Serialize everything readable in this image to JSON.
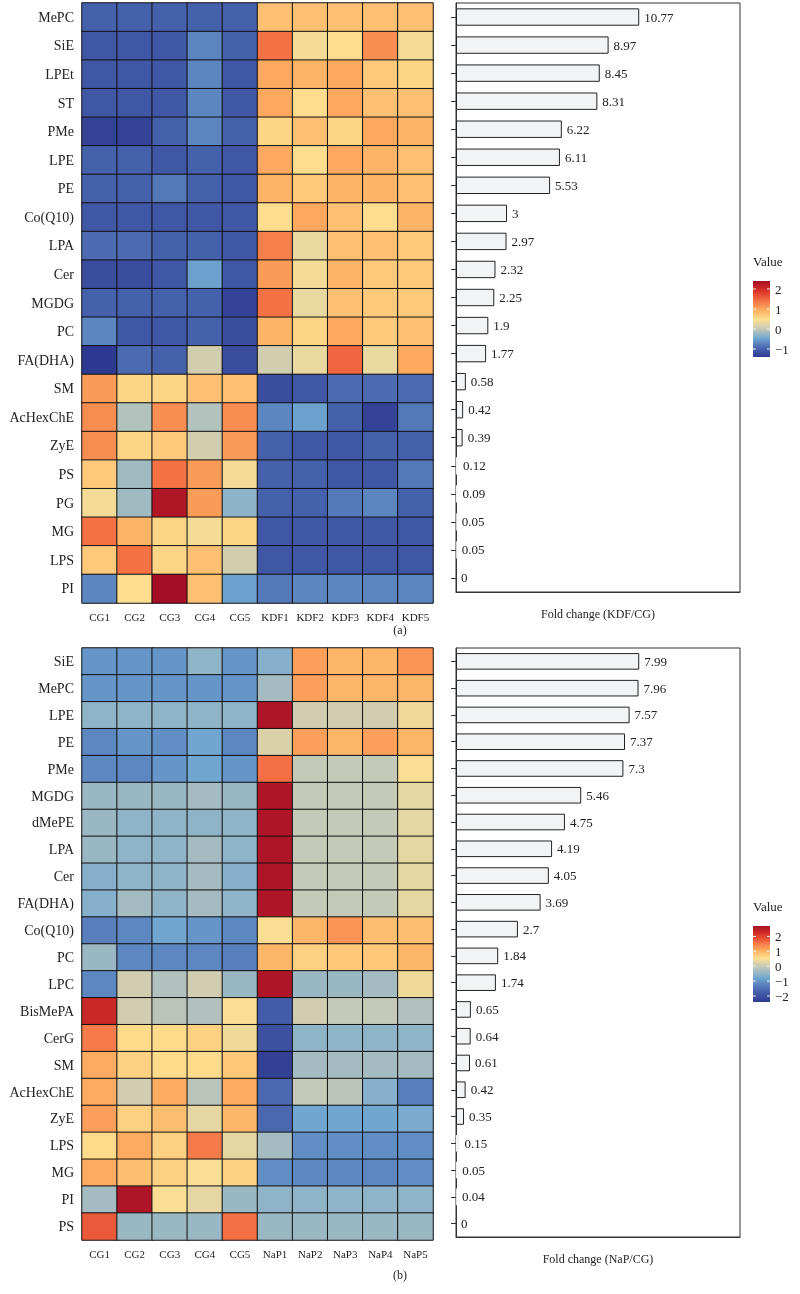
{
  "chart_data": [
    {
      "type": "heatmap",
      "categories": [
        "CG1",
        "CG2",
        "CG3",
        "CG4",
        "CG5",
        "KDF1",
        "KDF2",
        "KDF3",
        "KDF4",
        "KDF5"
      ],
      "y_categories": [
        "MePC",
        "SiE",
        "LPEt",
        "ST",
        "PMe",
        "LPE",
        "PE",
        "Co(Q10)",
        "LPA",
        "Cer",
        "MGDG",
        "PC",
        "FA(DHA)",
        "SM",
        "AcHexChE",
        "ZyE",
        "PS",
        "PG",
        "MG",
        "LPS",
        "PI"
      ],
      "cells": [
        [
          -1,
          -1,
          -1,
          -1,
          -1,
          0.8,
          0.8,
          0.8,
          0.8,
          0.8
        ],
        [
          -1.1,
          -1.1,
          -1.1,
          -0.7,
          -1,
          1.4,
          0.4,
          0.5,
          1.2,
          0.4
        ],
        [
          -1.1,
          -1.1,
          -1.1,
          -0.7,
          -1.1,
          1,
          0.9,
          1,
          0.7,
          0.6
        ],
        [
          -1.1,
          -1.1,
          -1.1,
          -0.7,
          -1.1,
          1,
          0.5,
          1,
          0.8,
          0.8
        ],
        [
          -1.3,
          -1.3,
          -1,
          -0.7,
          -1,
          0.6,
          0.8,
          0.6,
          1,
          0.9
        ],
        [
          -1,
          -1,
          -1.1,
          -1,
          -1.1,
          1,
          0.5,
          1,
          0.9,
          0.8
        ],
        [
          -1,
          -1,
          -0.8,
          -1,
          -1.1,
          0.9,
          0.7,
          0.9,
          0.9,
          0.8
        ],
        [
          -1.1,
          -1.1,
          -1.1,
          -1.1,
          -1.1,
          0.5,
          1,
          0.8,
          0.5,
          0.9
        ],
        [
          -0.9,
          -0.9,
          -1,
          -1,
          -1.1,
          1.3,
          0.3,
          0.8,
          0.8,
          0.7
        ],
        [
          -1.2,
          -1.2,
          -1.1,
          -0.5,
          -1.1,
          1.1,
          0.4,
          0.9,
          0.7,
          0.7
        ],
        [
          -1,
          -1,
          -1,
          -1,
          -1.3,
          1.4,
          0.3,
          0.8,
          0.7,
          0.7
        ],
        [
          -0.7,
          -1.1,
          -1.1,
          -1,
          -1.2,
          0.9,
          0.6,
          1,
          0.7,
          0.8
        ],
        [
          -1.4,
          -0.9,
          -1,
          0.1,
          -1.2,
          0.1,
          0.3,
          1.5,
          0.3,
          1
        ],
        [
          1.1,
          0.6,
          0.6,
          0.8,
          0.8,
          -1.2,
          -1.1,
          -0.9,
          -0.9,
          -0.9
        ],
        [
          1.2,
          -0.1,
          1.2,
          -0.1,
          1.2,
          -0.7,
          -0.5,
          -1,
          -1.3,
          -0.8
        ],
        [
          1.2,
          0.6,
          0.7,
          0.1,
          1.1,
          -1,
          -1.1,
          -1.1,
          -1,
          -1
        ],
        [
          0.7,
          -0.2,
          1.4,
          1.1,
          0.4,
          -1,
          -1,
          -1.1,
          -1.1,
          -0.8
        ],
        [
          0.4,
          -0.2,
          2.3,
          1.1,
          -0.3,
          -1,
          -1,
          -0.8,
          -0.7,
          -1
        ],
        [
          1.4,
          0.9,
          0.6,
          0.4,
          0.6,
          -1.1,
          -1.1,
          -1.1,
          -1.1,
          -1.1
        ],
        [
          0.7,
          1.4,
          0.6,
          0.8,
          0.1,
          -1.1,
          -1.1,
          -1.1,
          -1.1,
          -1.1
        ],
        [
          -0.7,
          0.5,
          2.4,
          0.8,
          -0.5,
          -0.8,
          -0.7,
          -0.7,
          -0.7,
          -0.7
        ]
      ],
      "clabel": "Value",
      "clim": [
        -1.4,
        2.4
      ],
      "cticks": [
        -1,
        0,
        1,
        2
      ],
      "annotations": [
        "(a)"
      ]
    },
    {
      "type": "bar",
      "orientation": "horizontal",
      "categories": [
        null,
        null,
        null,
        null,
        null,
        null,
        null,
        null,
        null,
        null,
        null,
        null,
        null,
        null,
        null,
        null,
        null,
        null,
        null,
        null,
        null
      ],
      "values": [
        10.77,
        8.97,
        8.45,
        8.31,
        6.22,
        6.11,
        5.53,
        3,
        2.97,
        2.32,
        2.25,
        1.9,
        1.77,
        0.58,
        0.42,
        0.39,
        0.12,
        0.09,
        0.05,
        0.05,
        0
      ],
      "color": "#f2f3f5",
      "data_labels": true,
      "xlabel": "Fold change (KDF/CG)"
    },
    {
      "type": "heatmap",
      "categories": [
        "CG1",
        "CG2",
        "CG3",
        "CG4",
        "CG5",
        "NaP1",
        "NaP2",
        "NaP3",
        "NaP4",
        "NaP5"
      ],
      "y_categories": [
        "SiE",
        "MePC",
        "LPE",
        "PE",
        "PMe",
        "MGDG",
        "dMePE",
        "LPA",
        "Cer",
        "FA(DHA)",
        "Co(Q10)",
        "PC",
        "LPC",
        "BisMePA",
        "CerG",
        "SM",
        "AcHexChE",
        "ZyE",
        "LPS",
        "MG",
        "PI",
        "PS"
      ],
      "cells": [
        [
          -1,
          -1,
          -1,
          -0.5,
          -1,
          -0.6,
          1.2,
          1,
          1,
          1.3
        ],
        [
          -1,
          -1,
          -1,
          -1,
          -1,
          -0.3,
          1.2,
          1,
          1,
          1
        ],
        [
          -0.5,
          -0.5,
          -0.5,
          -0.5,
          -0.5,
          2.6,
          0.1,
          0.1,
          0.1,
          0.4
        ],
        [
          -1.2,
          -1,
          -1.1,
          -0.8,
          -1.2,
          0.2,
          1.2,
          1,
          1.2,
          1
        ],
        [
          -1.2,
          -1.2,
          -1,
          -0.8,
          -1,
          1.6,
          0,
          0,
          0,
          0.5
        ],
        [
          -0.4,
          -0.4,
          -0.4,
          -0.3,
          -0.4,
          2.6,
          0,
          0,
          0,
          0.3
        ],
        [
          -0.4,
          -0.5,
          -0.5,
          -0.5,
          -0.5,
          2.6,
          0,
          0,
          0,
          0.3
        ],
        [
          -0.4,
          -0.5,
          -0.5,
          -0.3,
          -0.5,
          2.6,
          0,
          0,
          0,
          0.3
        ],
        [
          -0.6,
          -0.5,
          -0.5,
          -0.3,
          -0.6,
          2.6,
          0,
          0,
          0,
          0.3
        ],
        [
          -0.6,
          -0.3,
          -0.5,
          -0.3,
          -0.5,
          2.6,
          0,
          0,
          0,
          0.3
        ],
        [
          -1.3,
          -1.2,
          -0.8,
          -1,
          -1.2,
          0.5,
          1,
          1.3,
          0.9,
          0.9
        ],
        [
          -0.4,
          -1.2,
          -1.2,
          -1.2,
          -1.3,
          1,
          0.7,
          0.8,
          0.8,
          1
        ],
        [
          -1.2,
          0.1,
          -0.2,
          0.1,
          -0.4,
          2.6,
          -0.4,
          -0.4,
          -0.3,
          0.4
        ],
        [
          2.3,
          0.1,
          -0.1,
          -0.2,
          0.5,
          -1.8,
          0.1,
          0,
          0,
          -0.2
        ],
        [
          1.5,
          0.6,
          0.6,
          0.7,
          0.4,
          -2,
          -0.5,
          -0.5,
          -0.5,
          -0.5
        ],
        [
          1.1,
          0.7,
          0.6,
          0.6,
          0.8,
          -2.3,
          -0.3,
          -0.3,
          -0.3,
          -0.3
        ],
        [
          1.1,
          0.1,
          1.1,
          -0.1,
          1.1,
          -1.6,
          0,
          -0.1,
          -0.6,
          -1.3
        ],
        [
          1.2,
          0.7,
          0.9,
          0.3,
          1,
          -1.6,
          -0.8,
          -0.8,
          -0.8,
          -0.7
        ],
        [
          0.6,
          1.1,
          0.7,
          1.5,
          0.3,
          -0.3,
          -1.1,
          -1.1,
          -1.1,
          -1.1
        ],
        [
          1.1,
          0.9,
          0.7,
          0.5,
          0.7,
          -1.1,
          -1.2,
          -1.2,
          -1.2,
          -1.1
        ],
        [
          -0.3,
          2.6,
          0.5,
          0.3,
          -0.4,
          -0.5,
          -0.5,
          -0.5,
          -0.5,
          -0.5
        ],
        [
          1.8,
          -0.4,
          -0.4,
          -0.4,
          1.6,
          -0.4,
          -0.4,
          -0.4,
          -0.4,
          -0.4
        ]
      ],
      "clabel": "Value",
      "clim": [
        -2.4,
        2.7
      ],
      "cticks": [
        -2,
        -1,
        0,
        1,
        2
      ],
      "annotations": [
        "(b)"
      ]
    },
    {
      "type": "bar",
      "orientation": "horizontal",
      "categories": [
        null,
        null,
        null,
        null,
        null,
        null,
        null,
        null,
        null,
        null,
        null,
        null,
        null,
        null,
        null,
        null,
        null,
        null,
        null,
        null,
        null,
        null
      ],
      "values": [
        7.99,
        7.96,
        7.57,
        7.37,
        7.3,
        5.46,
        4.75,
        4.19,
        4.05,
        3.69,
        2.7,
        1.84,
        1.74,
        0.65,
        0.64,
        0.61,
        0.42,
        0.35,
        0.15,
        0.05,
        0.04,
        0
      ],
      "color": "#f2f3f5",
      "data_labels": true,
      "xlabel": "Fold change (NaP/CG)"
    }
  ]
}
